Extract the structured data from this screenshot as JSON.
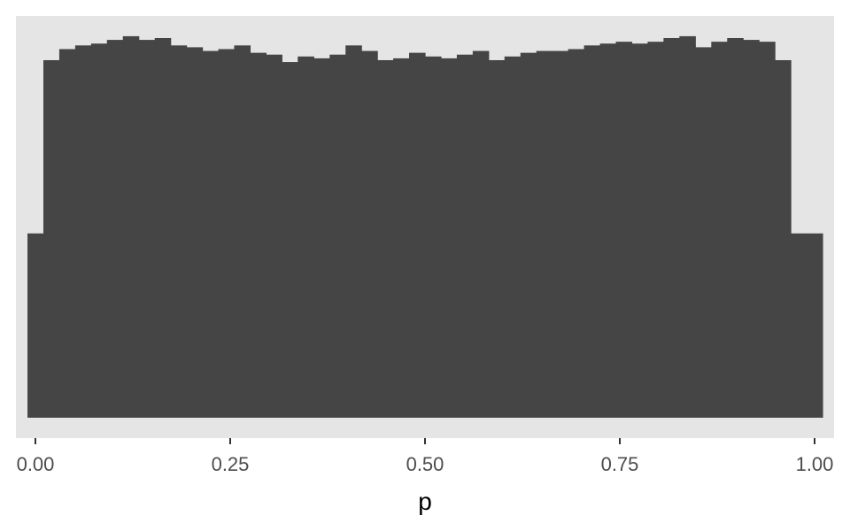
{
  "chart_data": {
    "type": "bar",
    "subtype": "histogram",
    "title": "",
    "xlabel": "p",
    "ylabel": "",
    "xlim": [
      -0.025,
      1.025
    ],
    "ylim": [
      0,
      1.09
    ],
    "x_ticks": [
      0.0,
      0.25,
      0.5,
      0.75,
      1.0
    ],
    "x_tick_labels": [
      "0.00",
      "0.25",
      "0.50",
      "0.75",
      "1.00"
    ],
    "y_ticks_shown": false,
    "grid": false,
    "bin_width": 0.02041,
    "bin_centers": [
      0.0,
      0.0204,
      0.0408,
      0.0612,
      0.0816,
      0.102,
      0.1224,
      0.1429,
      0.1633,
      0.1837,
      0.2041,
      0.2245,
      0.2449,
      0.2653,
      0.2857,
      0.3061,
      0.3265,
      0.3469,
      0.3673,
      0.3878,
      0.4082,
      0.4286,
      0.449,
      0.4694,
      0.4898,
      0.5102,
      0.5306,
      0.551,
      0.5714,
      0.5918,
      0.6122,
      0.6327,
      0.6531,
      0.6735,
      0.6939,
      0.7143,
      0.7347,
      0.7551,
      0.7755,
      0.7959,
      0.8163,
      0.8367,
      0.8571,
      0.8776,
      0.898,
      0.9184,
      0.9388,
      0.9592,
      0.9796,
      1.0
    ],
    "values": [
      0.5,
      0.97,
      1.0,
      1.01,
      1.015,
      1.025,
      1.035,
      1.025,
      1.03,
      1.01,
      1.005,
      0.995,
      1.0,
      1.01,
      0.99,
      0.985,
      0.965,
      0.98,
      0.975,
      0.985,
      1.01,
      0.995,
      0.97,
      0.975,
      0.99,
      0.98,
      0.975,
      0.985,
      0.995,
      0.97,
      0.98,
      0.99,
      0.995,
      0.995,
      1.0,
      1.01,
      1.015,
      1.02,
      1.015,
      1.02,
      1.03,
      1.035,
      1.005,
      1.02,
      1.03,
      1.025,
      1.02,
      0.97,
      0.5,
      0.5
    ],
    "colors": {
      "panel_background": "#e5e5e5",
      "bar_fill": "#454545",
      "tick_mark": "#333333",
      "tick_label": "#4d4d4d",
      "axis_title": "#000000"
    }
  }
}
